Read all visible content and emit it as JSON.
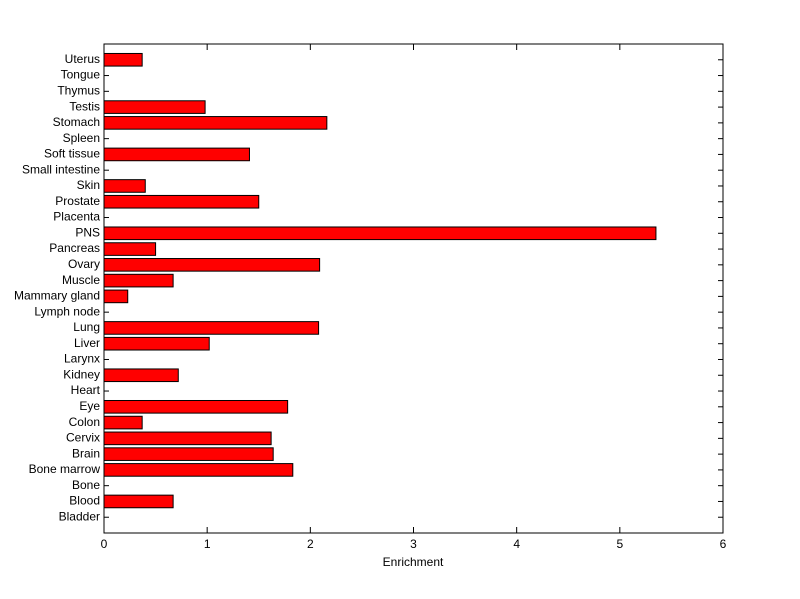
{
  "chart_data": {
    "type": "barh",
    "xlabel": "Enrichment",
    "categories": [
      "Bladder",
      "Blood",
      "Bone",
      "Bone marrow",
      "Brain",
      "Cervix",
      "Colon",
      "Eye",
      "Heart",
      "Kidney",
      "Larynx",
      "Liver",
      "Lung",
      "Lymph node",
      "Mammary gland",
      "Muscle",
      "Ovary",
      "Pancreas",
      "PNS",
      "Placenta",
      "Prostate",
      "Skin",
      "Small intestine",
      "Soft tissue",
      "Spleen",
      "Stomach",
      "Testis",
      "Thymus",
      "Tongue",
      "Uterus"
    ],
    "values": [
      0,
      0.67,
      0,
      1.83,
      1.64,
      1.62,
      0.37,
      1.78,
      0,
      0.72,
      0,
      1.02,
      2.08,
      0,
      0.23,
      0.67,
      2.09,
      0.5,
      5.35,
      0,
      1.5,
      0.4,
      0,
      1.41,
      0,
      2.16,
      0.98,
      0,
      0,
      0.37
    ],
    "color": "#ff0000",
    "xlim": [
      0,
      6
    ],
    "xticks": [
      0,
      1,
      2,
      3,
      4,
      5,
      6
    ]
  }
}
